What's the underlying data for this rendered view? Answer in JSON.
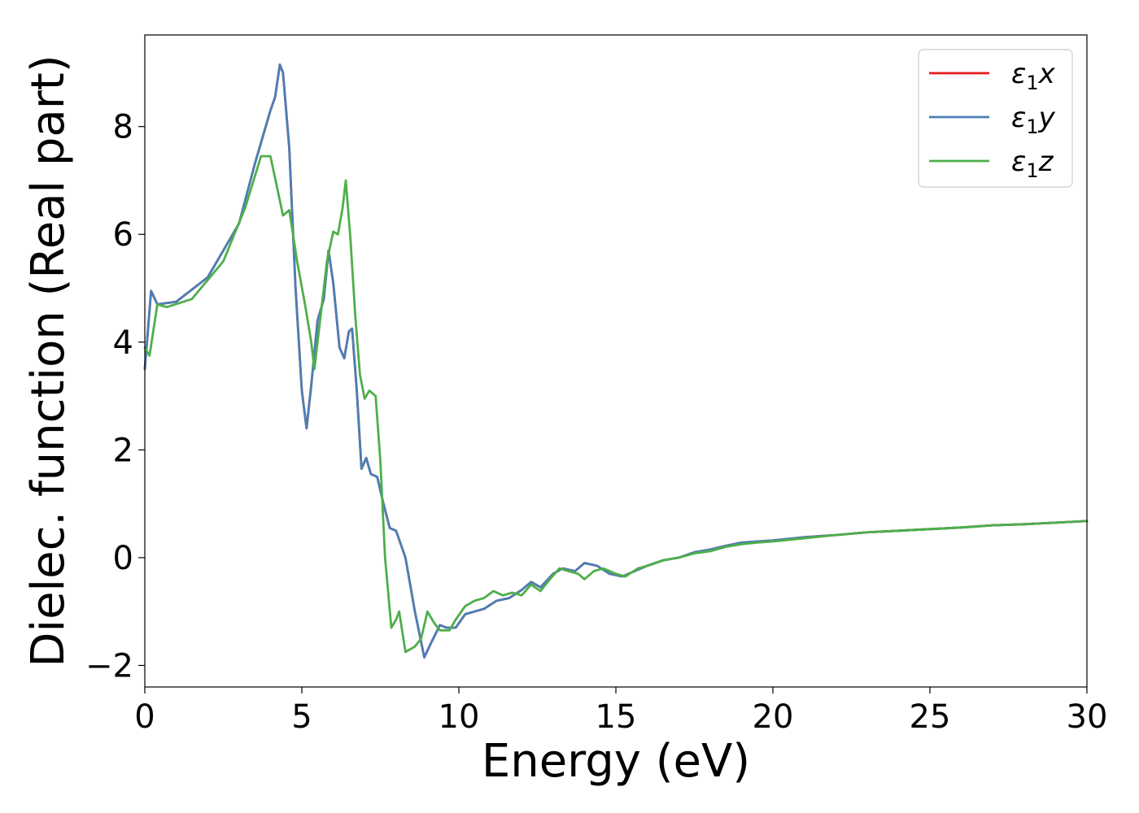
{
  "chart_data": {
    "type": "line",
    "xlabel": "Energy (eV)",
    "ylabel": "Dielec. function (Real part)",
    "xlim": [
      0,
      30
    ],
    "ylim": [
      -2.4,
      9.7
    ],
    "xticks": [
      0,
      5,
      10,
      15,
      20,
      25,
      30
    ],
    "yticks": [
      -2,
      0,
      2,
      4,
      6,
      8
    ],
    "xtick_labels": [
      "0",
      "5",
      "10",
      "15",
      "20",
      "25",
      "30"
    ],
    "ytick_labels": [
      "−2",
      "0",
      "2",
      "4",
      "6",
      "8"
    ],
    "grid": false,
    "legend_position": "top-right",
    "series": [
      {
        "name": "ε1x",
        "legend_base": "ε",
        "legend_sub": "1",
        "legend_var": "x",
        "color": "#e41a1c",
        "x": [
          0,
          0.2,
          0.4,
          1,
          2,
          3,
          3.5,
          4,
          4.15,
          4.3,
          4.4,
          4.6,
          4.8,
          5.0,
          5.15,
          5.3,
          5.5,
          5.7,
          5.85,
          6.0,
          6.2,
          6.35,
          6.5,
          6.6,
          6.75,
          6.9,
          7.05,
          7.2,
          7.4,
          7.6,
          7.8,
          8.0,
          8.3,
          8.6,
          8.9,
          9.1,
          9.4,
          9.6,
          9.9,
          10.2,
          10.5,
          10.8,
          11.2,
          11.6,
          12.0,
          12.3,
          12.6,
          13.0,
          13.3,
          13.7,
          14.0,
          14.4,
          14.8,
          15.2,
          15.6,
          16.0,
          16.5,
          17.0,
          17.5,
          18.0,
          18.5,
          19.0,
          19.5,
          20.0,
          21.0,
          22.0,
          23.0,
          24.0,
          25.0,
          26.0,
          27.0,
          28.0,
          29.0,
          30.0
        ],
        "y": [
          3.5,
          4.95,
          4.7,
          4.75,
          5.2,
          6.2,
          7.3,
          8.3,
          8.55,
          9.15,
          9.0,
          7.6,
          5.0,
          3.1,
          2.4,
          3.2,
          4.4,
          4.8,
          5.7,
          5.1,
          3.9,
          3.7,
          4.2,
          4.25,
          3.1,
          1.65,
          1.85,
          1.55,
          1.5,
          1.0,
          0.55,
          0.5,
          0.0,
          -1.0,
          -1.85,
          -1.6,
          -1.25,
          -1.3,
          -1.3,
          -1.05,
          -1.0,
          -0.95,
          -0.8,
          -0.75,
          -0.6,
          -0.45,
          -0.55,
          -0.3,
          -0.2,
          -0.25,
          -0.1,
          -0.15,
          -0.3,
          -0.35,
          -0.25,
          -0.15,
          -0.05,
          0.0,
          0.1,
          0.15,
          0.22,
          0.28,
          0.3,
          0.32,
          0.38,
          0.42,
          0.47,
          0.5,
          0.53,
          0.56,
          0.6,
          0.62,
          0.65,
          0.68
        ]
      },
      {
        "name": "ε1y",
        "legend_base": "ε",
        "legend_sub": "1",
        "legend_var": "y",
        "color": "#4a7fb5",
        "x": [
          0,
          0.2,
          0.4,
          1,
          2,
          3,
          3.5,
          4,
          4.15,
          4.3,
          4.4,
          4.6,
          4.8,
          5.0,
          5.15,
          5.3,
          5.5,
          5.7,
          5.85,
          6.0,
          6.2,
          6.35,
          6.5,
          6.6,
          6.75,
          6.9,
          7.05,
          7.2,
          7.4,
          7.6,
          7.8,
          8.0,
          8.3,
          8.6,
          8.9,
          9.1,
          9.4,
          9.6,
          9.9,
          10.2,
          10.5,
          10.8,
          11.2,
          11.6,
          12.0,
          12.3,
          12.6,
          13.0,
          13.3,
          13.7,
          14.0,
          14.4,
          14.8,
          15.2,
          15.6,
          16.0,
          16.5,
          17.0,
          17.5,
          18.0,
          18.5,
          19.0,
          19.5,
          20.0,
          21.0,
          22.0,
          23.0,
          24.0,
          25.0,
          26.0,
          27.0,
          28.0,
          29.0,
          30.0
        ],
        "y": [
          3.5,
          4.95,
          4.7,
          4.75,
          5.2,
          6.2,
          7.3,
          8.3,
          8.55,
          9.15,
          9.0,
          7.6,
          5.0,
          3.1,
          2.4,
          3.2,
          4.4,
          4.8,
          5.7,
          5.1,
          3.9,
          3.7,
          4.2,
          4.25,
          3.1,
          1.65,
          1.85,
          1.55,
          1.5,
          1.0,
          0.55,
          0.5,
          0.0,
          -1.0,
          -1.85,
          -1.6,
          -1.25,
          -1.3,
          -1.3,
          -1.05,
          -1.0,
          -0.95,
          -0.8,
          -0.75,
          -0.6,
          -0.45,
          -0.55,
          -0.3,
          -0.2,
          -0.25,
          -0.1,
          -0.15,
          -0.3,
          -0.35,
          -0.25,
          -0.15,
          -0.05,
          0.0,
          0.1,
          0.15,
          0.22,
          0.28,
          0.3,
          0.32,
          0.38,
          0.42,
          0.47,
          0.5,
          0.53,
          0.56,
          0.6,
          0.62,
          0.65,
          0.68
        ]
      },
      {
        "name": "ε1z",
        "legend_base": "ε",
        "legend_sub": "1",
        "legend_var": "z",
        "color": "#4daf4a",
        "x": [
          0,
          0.15,
          0.4,
          0.7,
          1.5,
          2.5,
          3.2,
          3.7,
          4.0,
          4.2,
          4.4,
          4.6,
          4.85,
          5.1,
          5.3,
          5.4,
          5.6,
          5.8,
          6.0,
          6.15,
          6.3,
          6.4,
          6.55,
          6.7,
          6.85,
          7.0,
          7.15,
          7.35,
          7.5,
          7.65,
          7.85,
          8.0,
          8.1,
          8.3,
          8.6,
          8.8,
          9.0,
          9.2,
          9.4,
          9.7,
          9.9,
          10.2,
          10.5,
          10.8,
          11.1,
          11.4,
          11.7,
          12.0,
          12.3,
          12.6,
          12.9,
          13.2,
          13.5,
          13.8,
          14.0,
          14.3,
          14.6,
          15.0,
          15.3,
          15.7,
          16.0,
          16.5,
          17.0,
          17.5,
          18.0,
          18.5,
          19.0,
          19.5,
          20.0,
          21.0,
          22.0,
          23.0,
          24.0,
          25.0,
          26.0,
          27.0,
          28.0,
          29.0,
          30.0
        ],
        "y": [
          3.9,
          3.75,
          4.7,
          4.65,
          4.8,
          5.5,
          6.5,
          7.45,
          7.45,
          6.9,
          6.35,
          6.45,
          5.5,
          4.7,
          4.0,
          3.5,
          4.5,
          5.5,
          6.05,
          6.0,
          6.5,
          7.0,
          5.9,
          4.5,
          3.4,
          2.95,
          3.1,
          3.0,
          1.8,
          0.0,
          -1.3,
          -1.15,
          -1.0,
          -1.75,
          -1.65,
          -1.5,
          -1.0,
          -1.2,
          -1.35,
          -1.35,
          -1.15,
          -0.9,
          -0.8,
          -0.75,
          -0.62,
          -0.7,
          -0.65,
          -0.7,
          -0.5,
          -0.62,
          -0.4,
          -0.2,
          -0.25,
          -0.3,
          -0.4,
          -0.25,
          -0.2,
          -0.3,
          -0.35,
          -0.2,
          -0.15,
          -0.05,
          0.0,
          0.08,
          0.12,
          0.2,
          0.25,
          0.28,
          0.3,
          0.36,
          0.42,
          0.47,
          0.5,
          0.53,
          0.56,
          0.6,
          0.62,
          0.65,
          0.68
        ]
      }
    ]
  }
}
